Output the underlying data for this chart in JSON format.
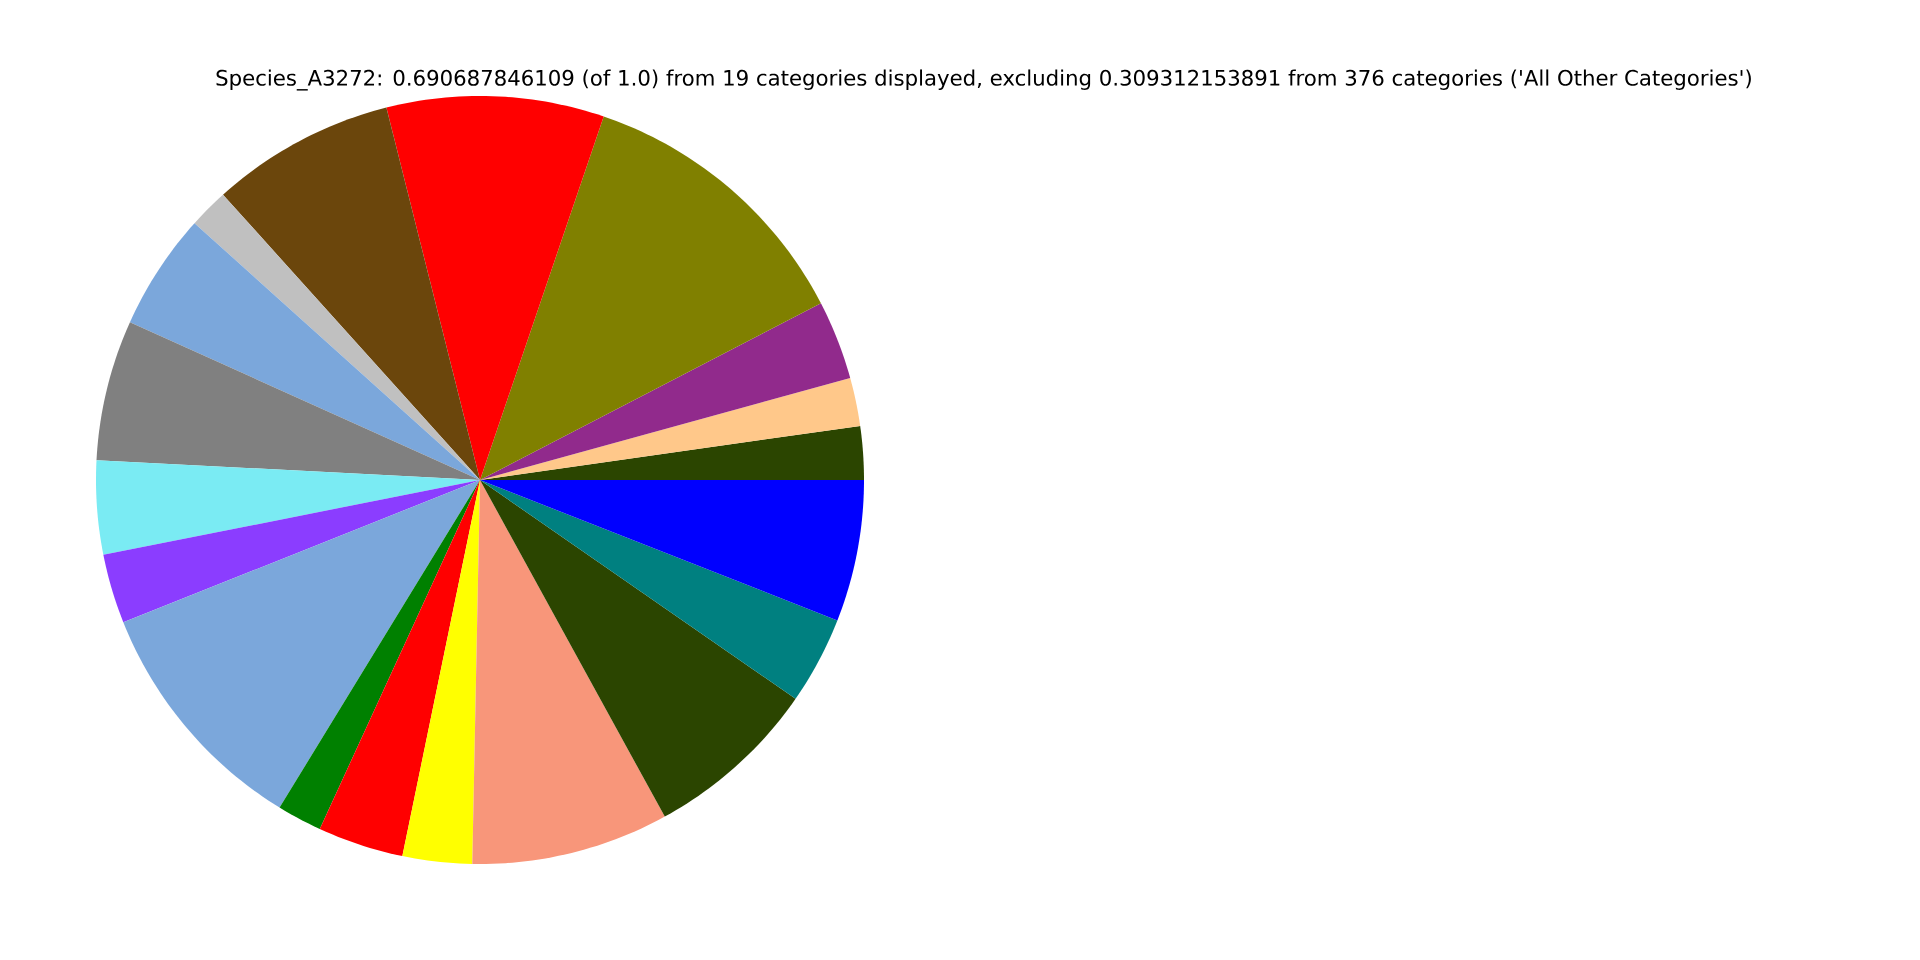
{
  "chart_data": {
    "type": "pie",
    "title": "Species_A3272: 0.690687846109 (of 1.0) from 19 categories displayed, excluding 0.309312153891 from 376 categories ('All Other Categories')",
    "categories": [
      null,
      null,
      null,
      null,
      null,
      null,
      null,
      null,
      null,
      null,
      null,
      null,
      null,
      null,
      null,
      null,
      null,
      null,
      null
    ],
    "values": [
      2.25,
      2.03,
      3.33,
      12.17,
      9.14,
      7.75,
      1.67,
      4.92,
      5.92,
      3.94,
      2.92,
      10.22,
      1.89,
      3.61,
      2.92,
      8.31,
      7.36,
      3.69,
      5.96
    ],
    "colors": [
      "#2b4500",
      "#ffc88a",
      "#912a8c",
      "#808000",
      "#ff0000",
      "#6b460c",
      "#c0c0c0",
      "#7ba7db",
      "#808080",
      "#7aebf3",
      "#8b3dff",
      "#7ba7db",
      "#008000",
      "#ff0000",
      "#ffff00",
      "#f8967a",
      "#2b4500",
      "#008080",
      "#0000ff"
    ]
  }
}
